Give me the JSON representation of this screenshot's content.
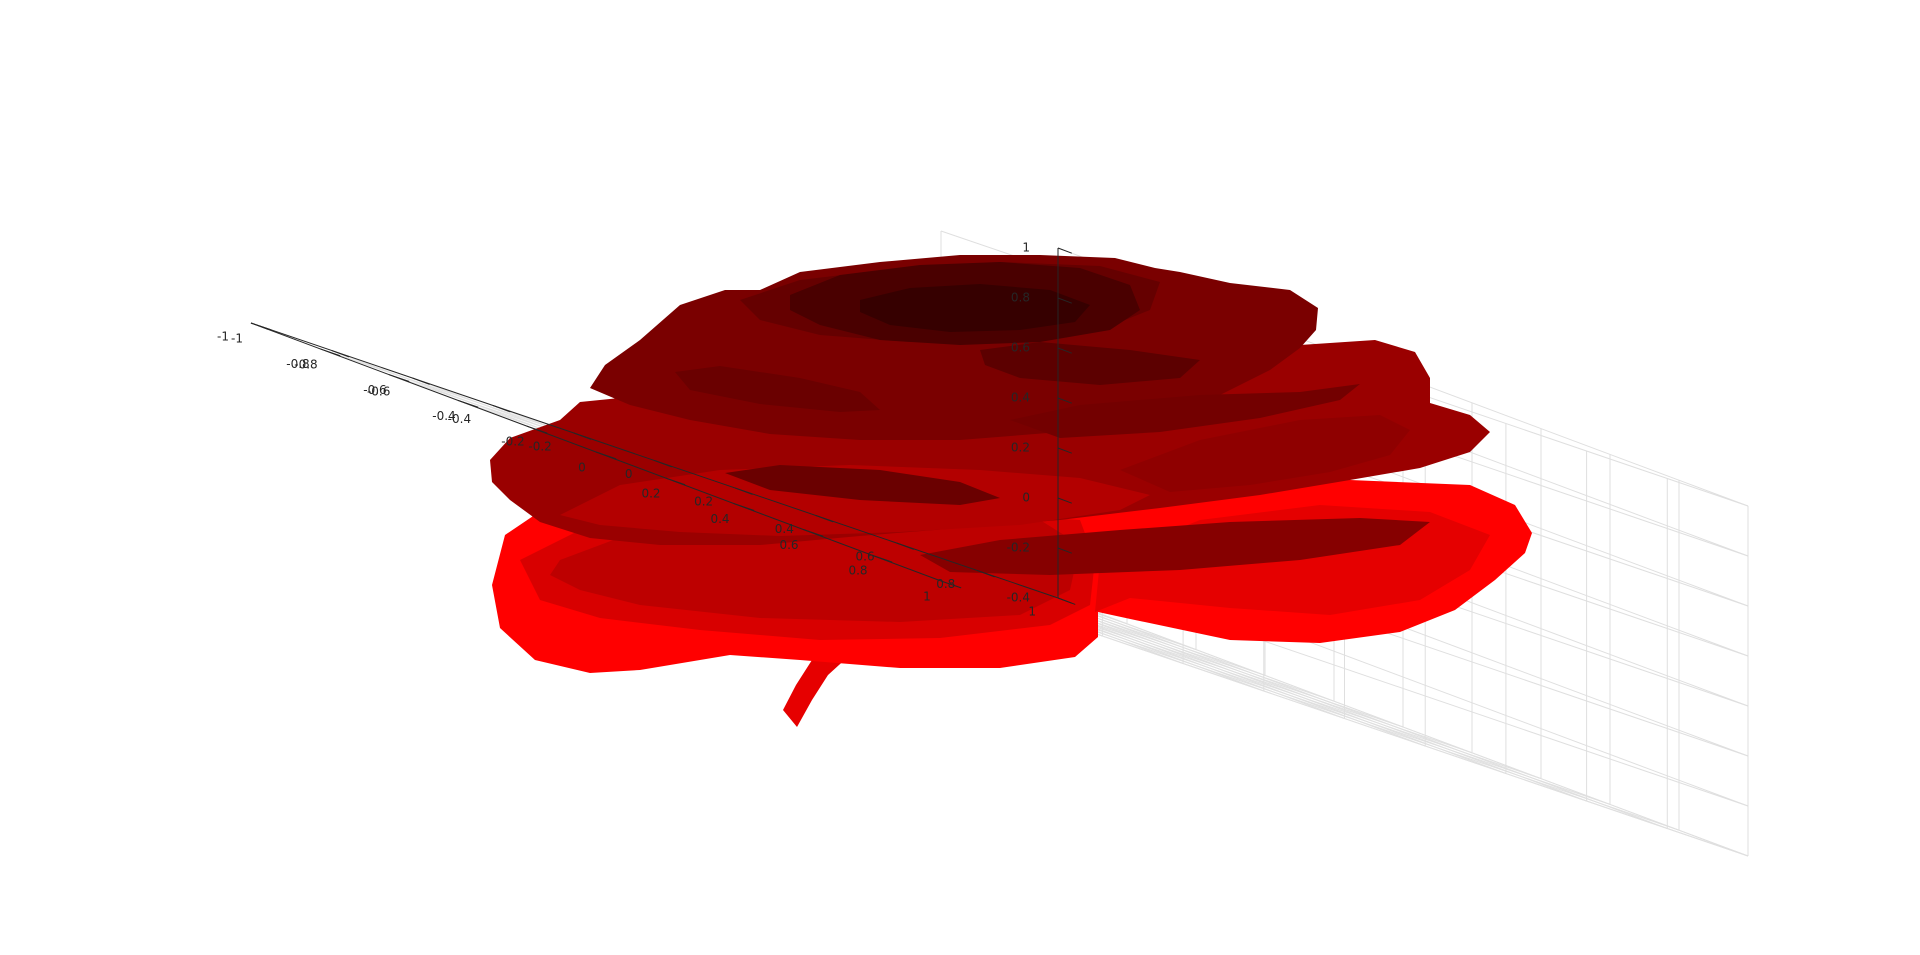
{
  "chart_data": {
    "type": "surface",
    "title": "",
    "xlabel": "",
    "ylabel": "",
    "zlabel": "",
    "grid": true,
    "colors": {
      "background": "#ffffff",
      "axis": "#262626",
      "grid": "#dfdfdf",
      "petal_light": "#ff0000",
      "petal_mid": "#c00000",
      "petal_dark": "#800000",
      "petal_darkest": "#3a0000"
    },
    "x_axis": {
      "lim": [
        -1,
        1
      ],
      "ticks": [
        -1,
        -0.8,
        -0.6,
        -0.4,
        -0.2,
        0,
        0.2,
        0.4,
        0.6,
        0.8,
        1
      ],
      "tick_labels": [
        "-1",
        "-0.8",
        "-0.6",
        "-0.4",
        "-0.2",
        "0",
        "0.2",
        "0.4",
        "0.6",
        "0.8",
        "1"
      ]
    },
    "y_axis": {
      "lim": [
        -1,
        1
      ],
      "ticks": [
        -1,
        -0.8,
        -0.6,
        -0.4,
        -0.2,
        0,
        0.2,
        0.4,
        0.6,
        0.8,
        1
      ],
      "tick_labels": [
        "-1",
        "-0.8",
        "-0.6",
        "-0.4",
        "-0.2",
        "0",
        "0.2",
        "0.4",
        "0.6",
        "0.8",
        "1"
      ]
    },
    "z_axis": {
      "lim": [
        -0.4,
        1
      ],
      "ticks": [
        -0.4,
        -0.2,
        0,
        0.2,
        0.4,
        0.6,
        0.8,
        1
      ],
      "tick_labels": [
        "-0.4",
        "-0.2",
        "0",
        "0.2",
        "0.4",
        "0.6",
        "0.8",
        "1"
      ]
    },
    "series": [
      {
        "colormap": "red-to-dark-red by height"
      }
    ]
  }
}
